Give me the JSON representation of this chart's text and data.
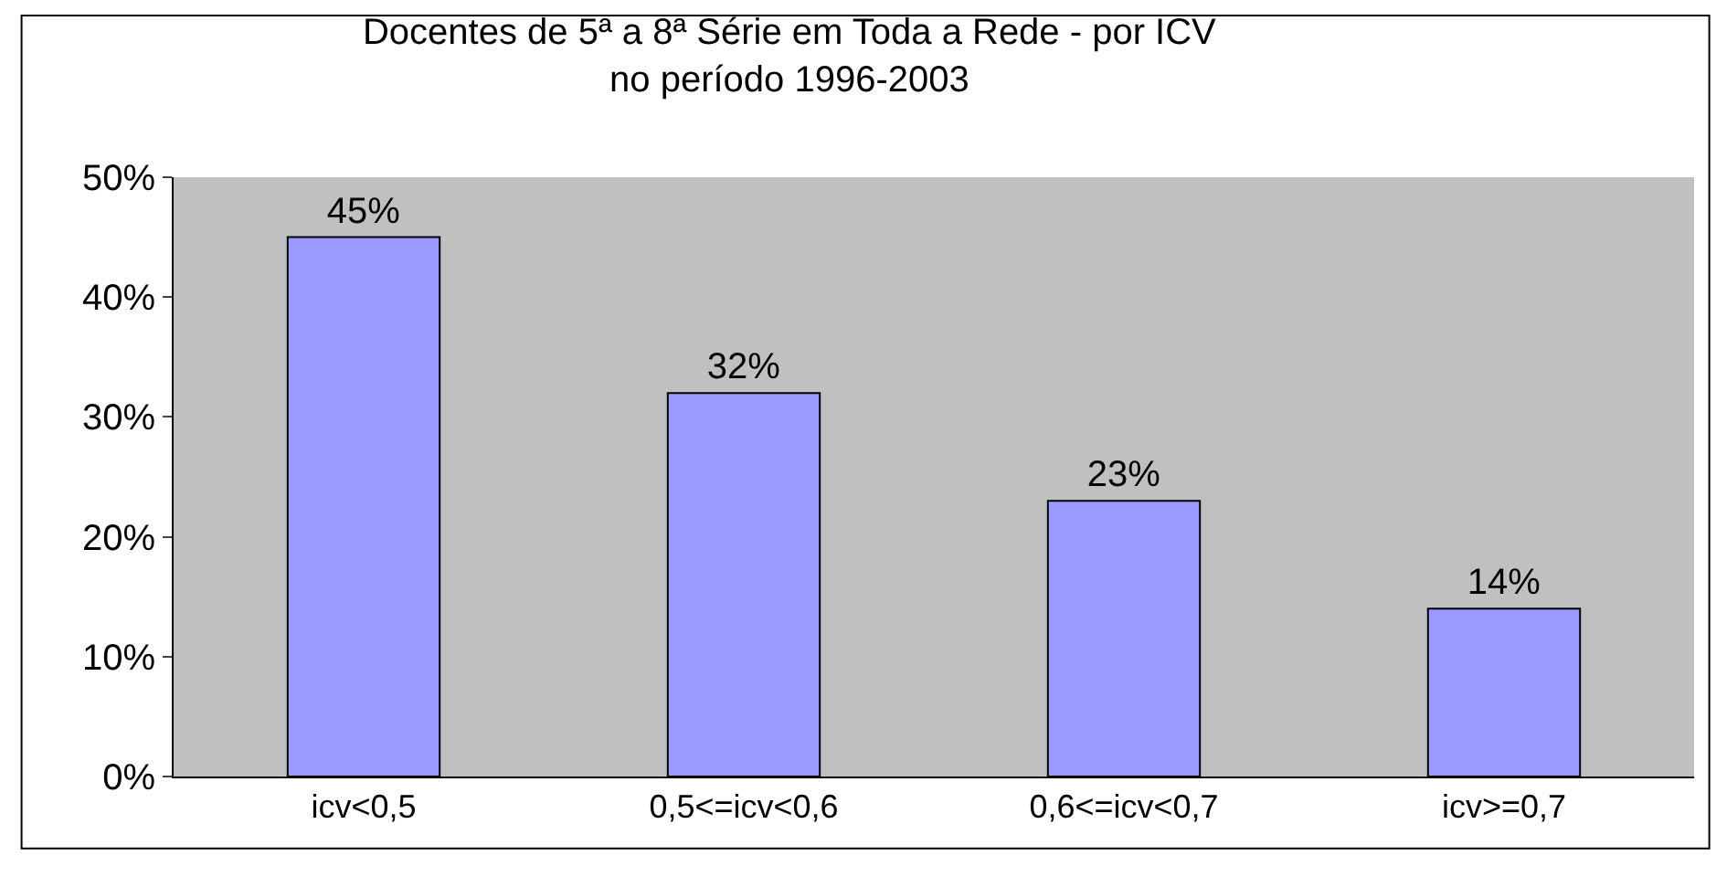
{
  "chart_data": {
    "type": "bar",
    "title": "Docentes de 5ª a 8ª Série em Toda a Rede - por ICV\nno período 1996-2003",
    "categories": [
      "icv<0,5",
      "0,5<=icv<0,6",
      "0,6<=icv<0,7",
      "icv>=0,7"
    ],
    "values": [
      45,
      32,
      23,
      14
    ],
    "value_labels": [
      "45%",
      "32%",
      "23%",
      "14%"
    ],
    "color": "#9999ff",
    "ylim": [
      0,
      50
    ],
    "yticks": [
      {
        "value": 0,
        "label": "0%"
      },
      {
        "value": 10,
        "label": "10%"
      },
      {
        "value": 20,
        "label": "20%"
      },
      {
        "value": 30,
        "label": "30%"
      },
      {
        "value": 40,
        "label": "40%"
      },
      {
        "value": 50,
        "label": "50%"
      }
    ],
    "grid": false,
    "legend": false
  }
}
